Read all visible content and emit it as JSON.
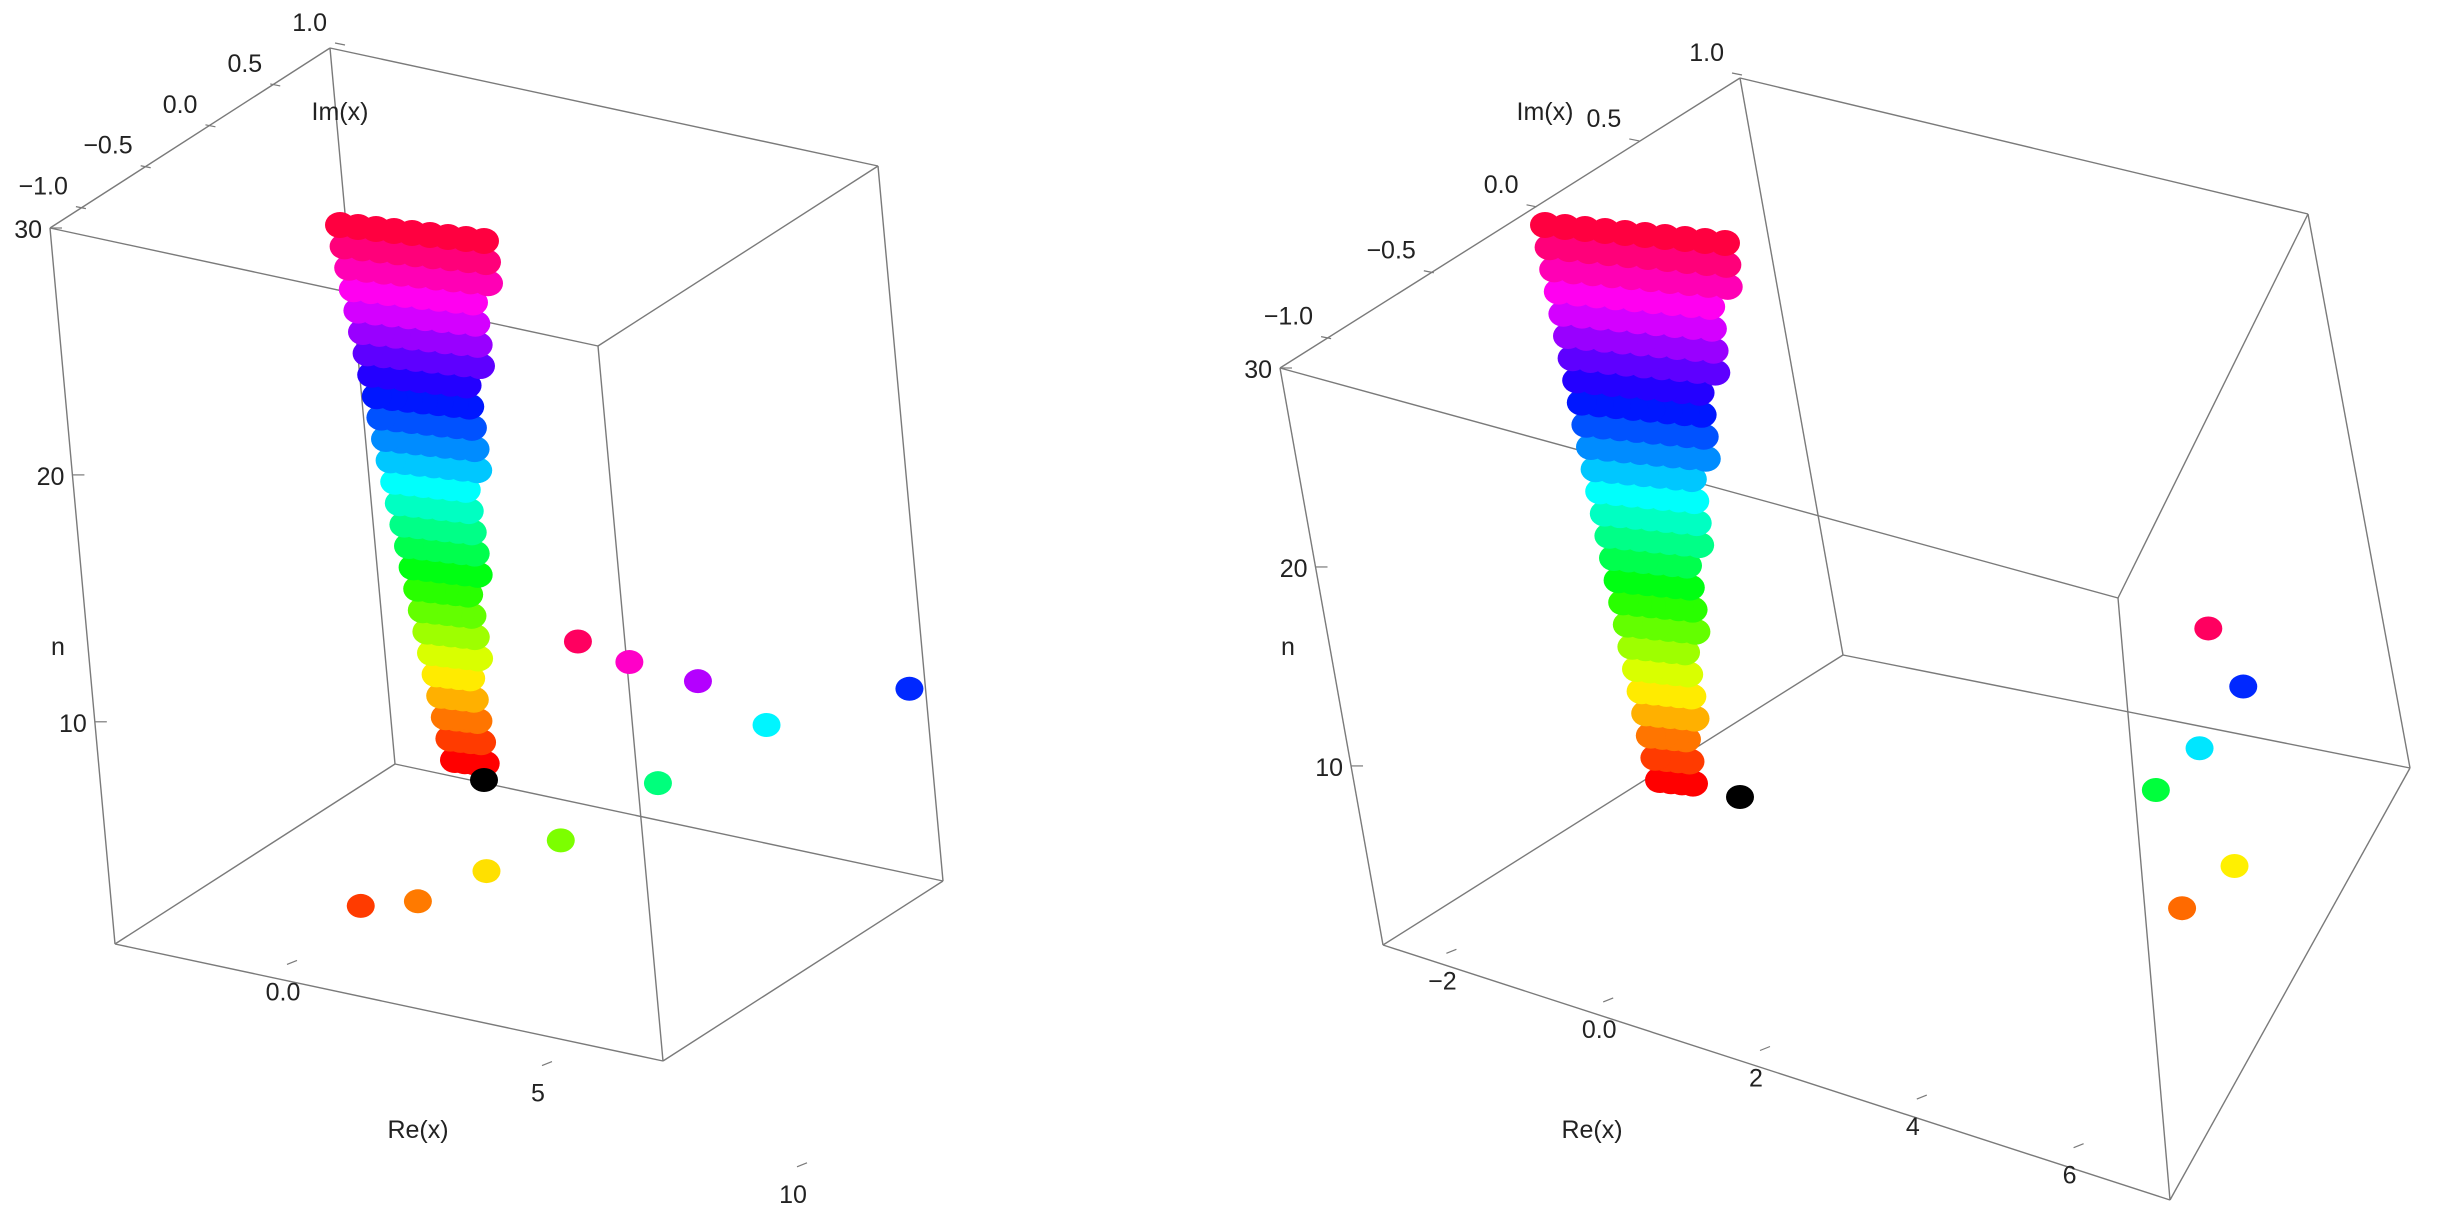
{
  "chart_data": [
    {
      "type": "scatter",
      "title": "",
      "axes": {
        "x": {
          "label": "Re(x)",
          "range": [
            -2,
            11
          ],
          "ticks": [
            0,
            5,
            10
          ]
        },
        "y": {
          "label": "Im(x)",
          "range": [
            -1.2,
            1.0
          ],
          "ticks": [
            -1.0,
            -0.5,
            0.0,
            0.5,
            1.0
          ]
        },
        "z": {
          "label": "n",
          "range": [
            1,
            30
          ],
          "ticks": [
            10,
            20,
            30
          ]
        }
      },
      "point_color_scheme": "hue by n",
      "points": [
        {
          "re": 0.9,
          "im": 0,
          "n": 2,
          "color": "#ff3b00"
        },
        {
          "re": 1.9,
          "im": 0,
          "n": 2,
          "color": "#ff7a00"
        },
        {
          "re": 3.1,
          "im": 0,
          "n": 3,
          "color": "#ffe000"
        },
        {
          "re": 4.4,
          "im": 0,
          "n": 4,
          "color": "#7cff00"
        },
        {
          "re": 6.1,
          "im": 0,
          "n": 6,
          "color": "#00ff7c"
        },
        {
          "re": 8.0,
          "im": 0,
          "n": 8,
          "color": "#00f5ff"
        },
        {
          "re": 10.5,
          "im": 0,
          "n": 9,
          "color": "#0028ff"
        },
        {
          "re": 6.8,
          "im": 0,
          "n": 10,
          "color": "#b400ff"
        },
        {
          "re": 5.6,
          "im": 0,
          "n": 11,
          "color": "#ff00c8"
        },
        {
          "re": 4.7,
          "im": 0,
          "n": 12,
          "color": "#ff0060"
        }
      ]
    },
    {
      "type": "scatter",
      "title": "",
      "axes": {
        "x": {
          "label": "Re(x)",
          "range": [
            -3,
            7
          ],
          "ticks": [
            -2,
            0,
            2,
            4,
            6
          ]
        },
        "y": {
          "label": "Im(x)",
          "range": [
            -1.2,
            1.0
          ],
          "ticks": [
            -1.0,
            -0.5,
            0.0,
            0.5,
            1.0
          ]
        },
        "z": {
          "label": "n",
          "range": [
            1,
            30
          ],
          "ticks": [
            10,
            20,
            30
          ]
        }
      },
      "point_color_scheme": "hue by n",
      "points": [
        {
          "re": 6.2,
          "im": 0,
          "n": 1,
          "color": "#ff6a00"
        },
        {
          "re": 6.8,
          "im": 0,
          "n": 3,
          "color": "#fff000"
        },
        {
          "re": 5.9,
          "im": 0,
          "n": 7,
          "color": "#00ff3c"
        },
        {
          "re": 6.4,
          "im": 0,
          "n": 9,
          "color": "#00e6ff"
        },
        {
          "re": 6.9,
          "im": 0,
          "n": 12,
          "color": "#0028ff"
        },
        {
          "re": 6.5,
          "im": 0,
          "n": 15,
          "color": "#ff0060"
        }
      ]
    }
  ]
}
